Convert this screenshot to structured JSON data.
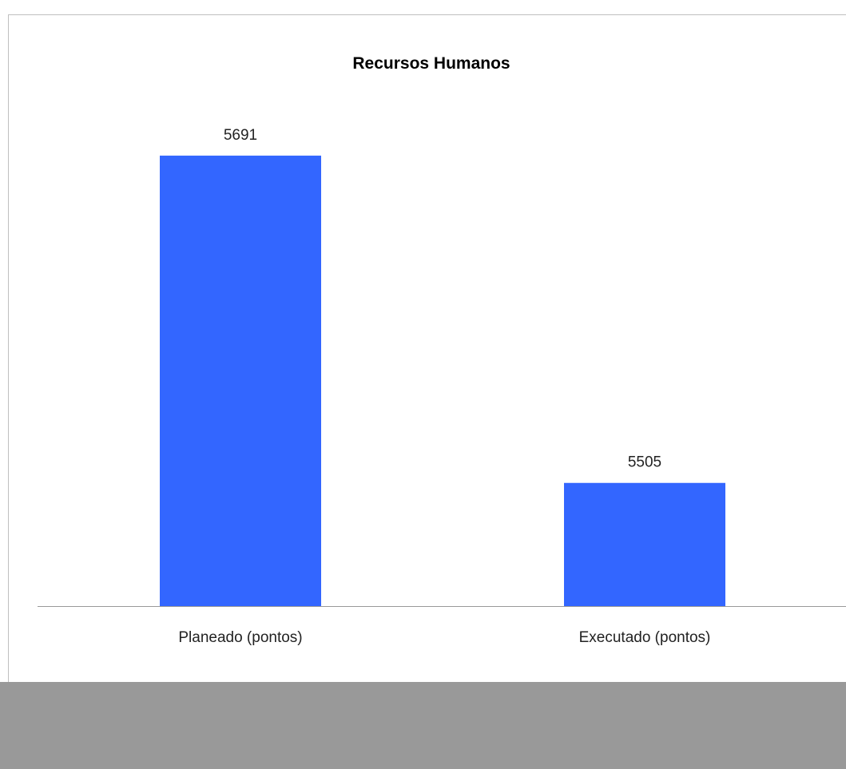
{
  "chart_data": {
    "type": "bar",
    "title": "Recursos Humanos",
    "categories": [
      "Planeado (pontos)",
      "Executado (pontos)"
    ],
    "values": [
      5691,
      5505
    ],
    "data_labels": [
      "5691",
      "5505"
    ],
    "ylim": [
      5435,
      5710
    ],
    "grid": false,
    "legend": "none",
    "colors": {
      "bar": "#3366FF",
      "axis": "#999999",
      "border": "#BFBFBF",
      "footer_band": "#999999"
    }
  }
}
